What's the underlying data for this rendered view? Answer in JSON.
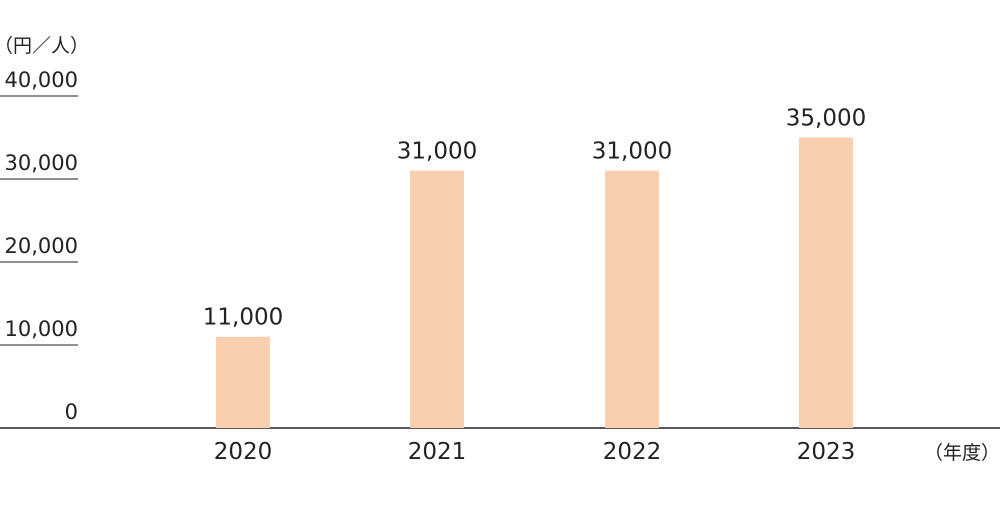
{
  "chart_data": {
    "type": "bar",
    "y_unit_label": "（円／人）",
    "x_unit_label": "（年度）",
    "categories": [
      "2020",
      "2021",
      "2022",
      "2023"
    ],
    "values": [
      11000,
      31000,
      31000,
      35000
    ],
    "value_labels": [
      "11,000",
      "31,000",
      "31,000",
      "35,000"
    ],
    "color": "#f9cfae",
    "ylim": [
      0,
      40000
    ],
    "yticks": [
      0,
      {
        "value": 10000,
        "label": "10,000"
      },
      {
        "value": 20000,
        "label": "20,000"
      },
      {
        "value": 30000,
        "label": "30,000"
      },
      {
        "value": 40000,
        "label": "40,000"
      }
    ]
  }
}
